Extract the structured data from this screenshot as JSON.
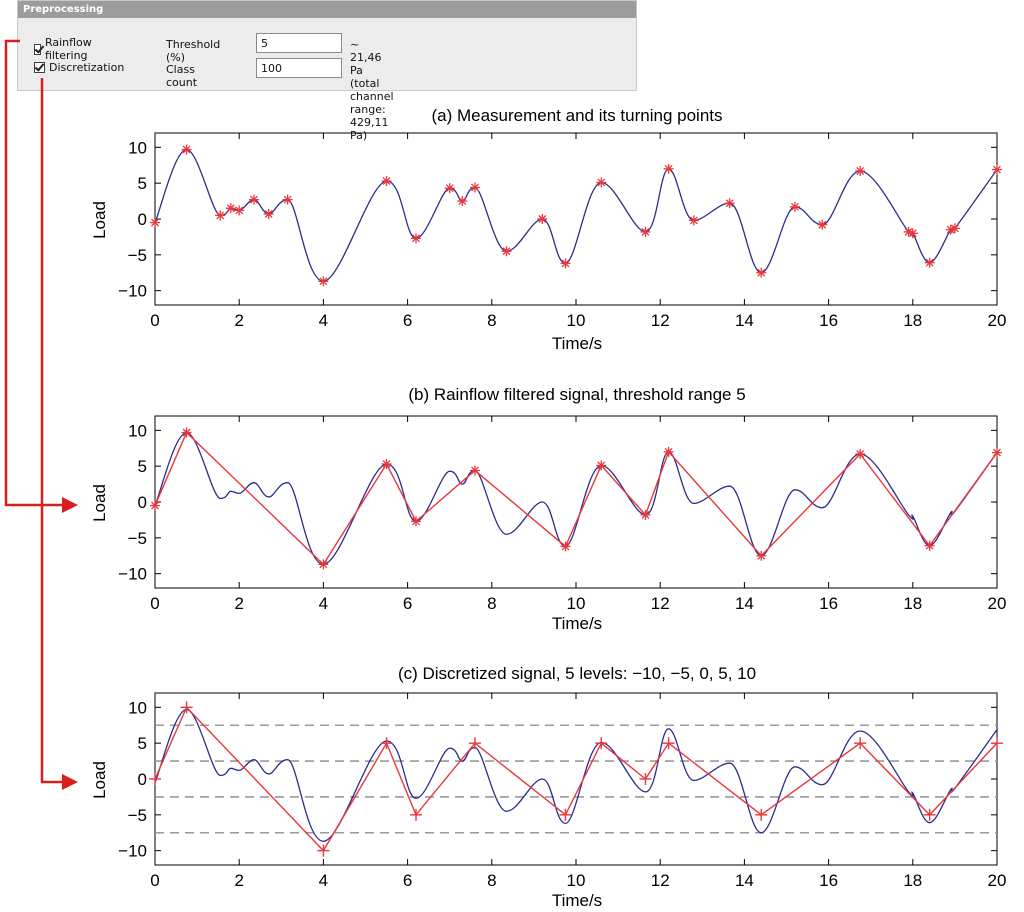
{
  "preprocessing": {
    "title": "Preprocessing",
    "rainflow_label": "Rainflow filtering",
    "rainflow_checked": true,
    "threshold_label": "Threshold (%)",
    "threshold_value": "5",
    "threshold_note": "~ 21,46 Pa (total channel range: 429,11 Pa)",
    "discretization_label": "Discretization",
    "discretization_checked": true,
    "class_count_label": "Class count",
    "class_count_value": "100"
  },
  "colors": {
    "signal": "#2b2d8f",
    "markers": "#e8383d",
    "arrow": "#d81e1e",
    "grid_dash": "#9a9a9a"
  },
  "chart_data": [
    {
      "type": "line",
      "title": "(a) Measurement and its turning points",
      "xlabel": "Time/s",
      "ylabel": "Load",
      "xlim": [
        0,
        20
      ],
      "ylim": [
        -12,
        12
      ],
      "xticks": [
        0,
        2,
        4,
        6,
        8,
        10,
        12,
        14,
        16,
        18,
        20
      ],
      "yticks": [
        -10,
        -5,
        0,
        5,
        10
      ],
      "grid": false,
      "series": [
        {
          "role": "signal",
          "x": [
            0,
            0.75,
            1.55,
            1.8,
            2.0,
            2.35,
            2.7,
            3.15,
            4.0,
            5.5,
            6.2,
            7.0,
            7.3,
            7.6,
            8.35,
            9.2,
            9.75,
            10.6,
            11.65,
            12.2,
            12.8,
            13.65,
            14.4,
            15.2,
            15.85,
            16.75,
            17.9,
            18.0,
            18.4,
            18.9,
            19.0,
            20.0
          ],
          "y": [
            -0.5,
            9.7,
            0.5,
            1.5,
            1.2,
            2.7,
            0.7,
            2.7,
            -8.7,
            5.3,
            -2.7,
            4.3,
            2.5,
            4.4,
            -4.5,
            0.0,
            -6.2,
            5.1,
            -1.8,
            7.0,
            -0.2,
            2.2,
            -7.5,
            1.7,
            -0.8,
            6.7,
            -1.8,
            -2.0,
            -6.1,
            -1.5,
            -1.3,
            6.9
          ]
        },
        {
          "role": "turning points",
          "marker": "*",
          "x": [
            0,
            0.75,
            1.55,
            1.8,
            2.0,
            2.35,
            2.7,
            3.15,
            4.0,
            5.5,
            6.2,
            7.0,
            7.3,
            7.6,
            8.35,
            9.2,
            9.75,
            10.6,
            11.65,
            12.2,
            12.8,
            13.65,
            14.4,
            15.2,
            15.85,
            16.75,
            17.9,
            18.0,
            18.4,
            18.9,
            19.0,
            20.0
          ],
          "y": [
            -0.5,
            9.7,
            0.5,
            1.5,
            1.2,
            2.7,
            0.7,
            2.7,
            -8.7,
            5.3,
            -2.7,
            4.3,
            2.5,
            4.4,
            -4.5,
            0.0,
            -6.2,
            5.1,
            -1.8,
            7.0,
            -0.2,
            2.2,
            -7.5,
            1.7,
            -0.8,
            6.7,
            -1.8,
            -2.0,
            -6.1,
            -1.5,
            -1.3,
            6.9
          ]
        }
      ]
    },
    {
      "type": "line",
      "title": "(b) Rainflow filtered signal, threshold range 5",
      "xlabel": "Time/s",
      "ylabel": "Load",
      "xlim": [
        0,
        20
      ],
      "ylim": [
        -12,
        12
      ],
      "xticks": [
        0,
        2,
        4,
        6,
        8,
        10,
        12,
        14,
        16,
        18,
        20
      ],
      "yticks": [
        -10,
        -5,
        0,
        5,
        10
      ],
      "grid": false,
      "series": [
        {
          "role": "signal",
          "x": [
            0,
            0.75,
            1.55,
            1.8,
            2.0,
            2.35,
            2.7,
            3.15,
            4.0,
            5.5,
            6.2,
            7.0,
            7.3,
            7.6,
            8.35,
            9.2,
            9.75,
            10.6,
            11.65,
            12.2,
            12.8,
            13.65,
            14.4,
            15.2,
            15.85,
            16.75,
            17.9,
            18.0,
            18.4,
            18.9,
            19.0,
            20.0
          ],
          "y": [
            -0.5,
            9.7,
            0.5,
            1.5,
            1.2,
            2.7,
            0.7,
            2.7,
            -8.7,
            5.3,
            -2.7,
            4.3,
            2.5,
            4.4,
            -4.5,
            0.0,
            -6.2,
            5.1,
            -1.8,
            7.0,
            -0.2,
            2.2,
            -7.5,
            1.7,
            -0.8,
            6.7,
            -1.8,
            -2.0,
            -6.1,
            -1.5,
            -1.3,
            6.9
          ]
        },
        {
          "role": "filtered",
          "marker": "*",
          "x": [
            0,
            0.75,
            4.0,
            5.5,
            6.2,
            7.6,
            9.75,
            10.6,
            11.65,
            12.2,
            14.4,
            16.75,
            18.4,
            20.0
          ],
          "y": [
            -0.5,
            9.7,
            -8.7,
            5.3,
            -2.7,
            4.4,
            -6.2,
            5.1,
            -1.8,
            7.0,
            -7.5,
            6.7,
            -6.1,
            6.9
          ]
        }
      ]
    },
    {
      "type": "line",
      "title": "(c) Discretized signal, 5 levels: −10, −5, 0, 5, 10",
      "xlabel": "Time/s",
      "ylabel": "Load",
      "xlim": [
        0,
        20
      ],
      "ylim": [
        -12,
        12
      ],
      "xticks": [
        0,
        2,
        4,
        6,
        8,
        10,
        12,
        14,
        16,
        18,
        20
      ],
      "yticks": [
        -10,
        -5,
        0,
        5,
        10
      ],
      "grid": false,
      "class_boundaries": [
        -7.5,
        -2.5,
        2.5,
        7.5
      ],
      "series": [
        {
          "role": "signal",
          "x": [
            0,
            0.75,
            1.55,
            1.8,
            2.0,
            2.35,
            2.7,
            3.15,
            4.0,
            5.5,
            6.2,
            7.0,
            7.3,
            7.6,
            8.35,
            9.2,
            9.75,
            10.6,
            11.65,
            12.2,
            12.8,
            13.65,
            14.4,
            15.2,
            15.85,
            16.75,
            17.9,
            18.0,
            18.4,
            18.9,
            19.0,
            20.0
          ],
          "y": [
            -0.5,
            9.7,
            0.5,
            1.5,
            1.2,
            2.7,
            0.7,
            2.7,
            -8.7,
            5.3,
            -2.7,
            4.3,
            2.5,
            4.4,
            -4.5,
            0.0,
            -6.2,
            5.1,
            -1.8,
            7.0,
            -0.2,
            2.2,
            -7.5,
            1.7,
            -0.8,
            6.7,
            -1.8,
            -2.0,
            -6.1,
            -1.5,
            -1.3,
            6.9
          ]
        },
        {
          "role": "discretized",
          "marker": "+",
          "x": [
            0,
            0.75,
            4.0,
            5.5,
            6.2,
            7.6,
            9.75,
            10.6,
            11.65,
            12.2,
            14.4,
            16.75,
            18.4,
            20.0
          ],
          "y": [
            0,
            10,
            -10,
            5,
            -5,
            5,
            -5,
            5,
            0,
            5,
            -5,
            5,
            -5,
            5
          ]
        }
      ]
    }
  ]
}
